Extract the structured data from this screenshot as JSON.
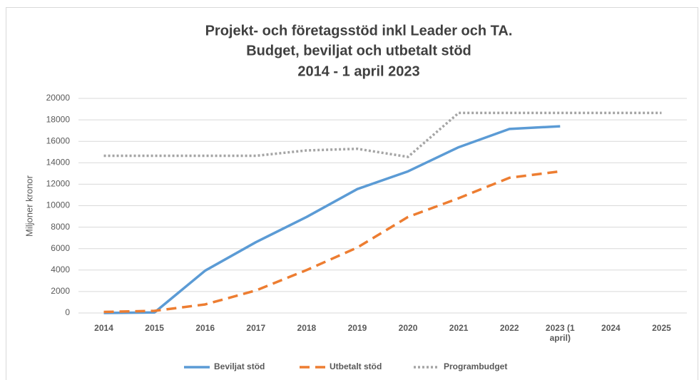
{
  "chart_data": {
    "type": "line",
    "title": [
      "Projekt- och företagsstöd inkl Leader och TA.",
      "Budget, beviljat och utbetalt stöd",
      "2014 - 1 april 2023"
    ],
    "y_label": "Miljoner kronor",
    "categories": [
      "2014",
      "2015",
      "2016",
      "2017",
      "2018",
      "2019",
      "2020",
      "2021",
      "2022",
      "2023 (1 april)",
      "2024",
      "2025"
    ],
    "series": [
      {
        "name": "Beviljat stöd",
        "color": "#5b9bd5",
        "dash": "solid",
        "values": [
          0,
          50,
          3950,
          6600,
          8950,
          11550,
          13200,
          15450,
          17150,
          17400,
          null,
          null
        ]
      },
      {
        "name": "Utbetalt stöd",
        "color": "#ed7d31",
        "dash": "dashed",
        "values": [
          100,
          200,
          800,
          2100,
          4000,
          6100,
          8950,
          10700,
          12600,
          13200,
          null,
          null
        ]
      },
      {
        "name": "Programbudget",
        "color": "#a5a5a5",
        "dash": "dotted",
        "values": [
          14650,
          14650,
          14650,
          14650,
          15150,
          15300,
          14550,
          18650,
          18650,
          18650,
          18650,
          18650
        ]
      }
    ],
    "ylim": [
      0,
      20000
    ],
    "yticks": [
      0,
      2000,
      4000,
      6000,
      8000,
      10000,
      12000,
      14000,
      16000,
      18000,
      20000
    ],
    "grid": true,
    "legend": "bottom"
  }
}
